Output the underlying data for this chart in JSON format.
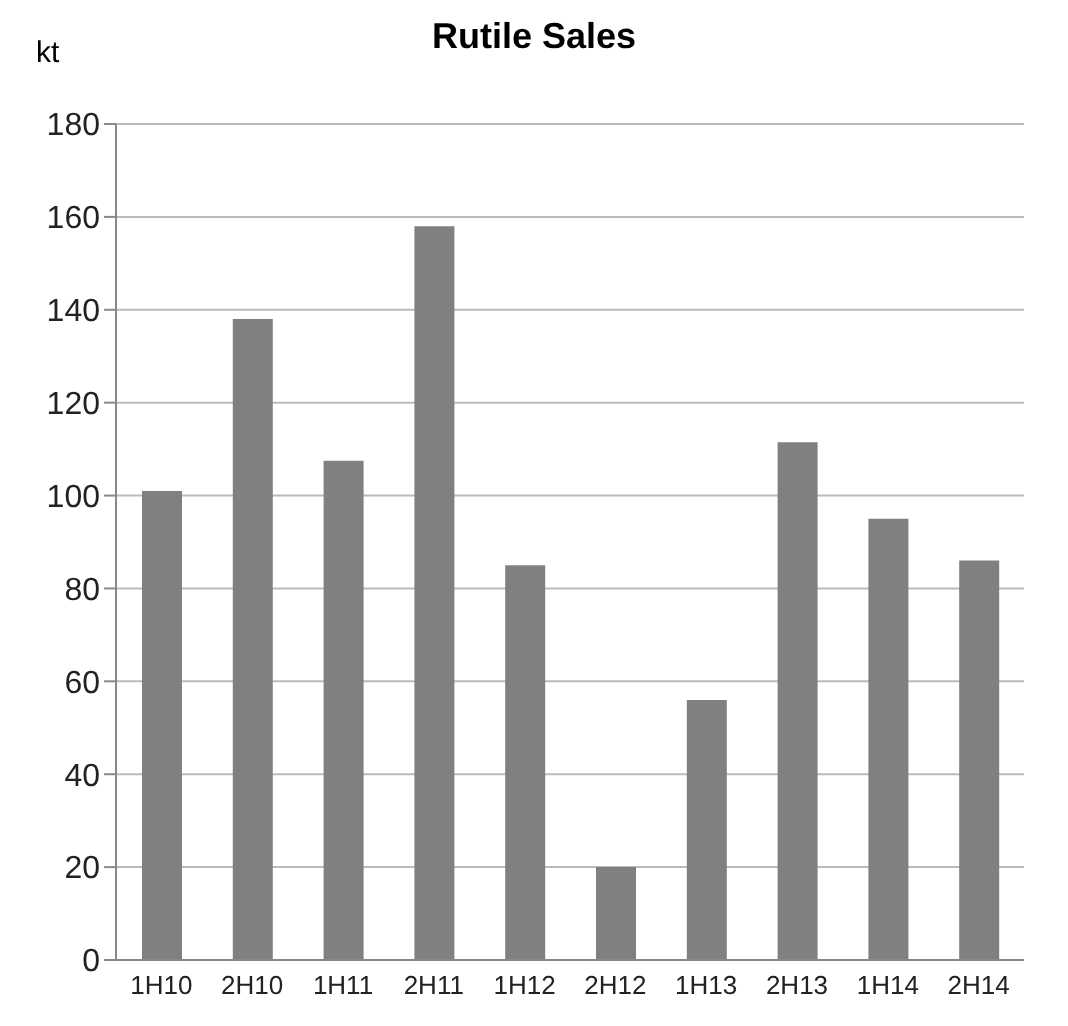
{
  "chart_data": {
    "type": "bar",
    "title": "Rutile Sales",
    "ylabel": "kt",
    "categories": [
      "1H10",
      "2H10",
      "1H11",
      "2H11",
      "1H12",
      "2H12",
      "1H13",
      "2H13",
      "1H14",
      "2H14"
    ],
    "values": [
      101,
      138,
      107.5,
      158,
      85,
      20,
      56,
      111.5,
      95,
      86
    ],
    "color": "#808080",
    "ylim": [
      0,
      180
    ],
    "yticks": [
      0,
      20,
      40,
      60,
      80,
      100,
      120,
      140,
      160,
      180
    ],
    "grid": "y"
  }
}
